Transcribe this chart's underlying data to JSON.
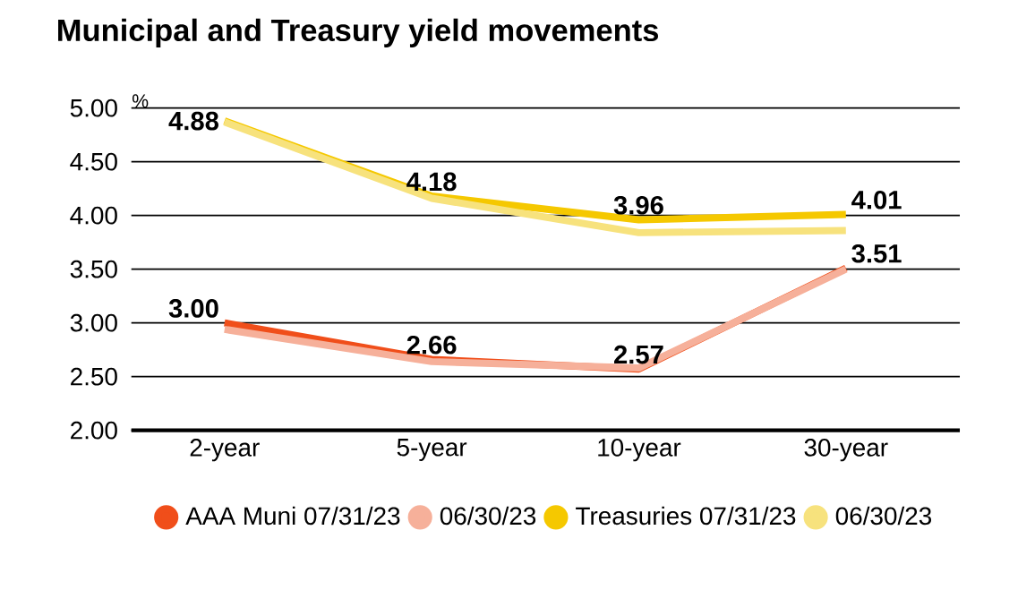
{
  "chart_data": {
    "type": "line",
    "title": "Municipal and Treasury yield movements",
    "ylabel": "%",
    "categories": [
      "2-year",
      "5-year",
      "10-year",
      "30-year"
    ],
    "series": [
      {
        "name": "AAA Muni 07/31/23",
        "color": "#f04e1a",
        "values": [
          3.0,
          2.66,
          2.57,
          3.51
        ],
        "value_labels": [
          "3.00",
          "2.66",
          "2.57",
          "3.51"
        ]
      },
      {
        "name": "06/30/23",
        "color": "#f6b09a",
        "values": [
          2.94,
          2.64,
          2.58,
          3.5
        ]
      },
      {
        "name": "Treasuries 07/31/23",
        "color": "#f5c800",
        "values": [
          4.88,
          4.18,
          3.96,
          4.01
        ],
        "value_labels": [
          "4.88",
          "4.18",
          "3.96",
          "4.01"
        ]
      },
      {
        "name": "06/30/23",
        "color": "#f7e27d",
        "values": [
          4.87,
          4.16,
          3.84,
          3.86
        ]
      }
    ],
    "ylim": [
      2,
      5
    ],
    "yticks": [
      {
        "value": 2,
        "label": "2.00"
      },
      {
        "value": 2.5,
        "label": "2.50"
      },
      {
        "value": 3,
        "label": "3.00"
      },
      {
        "value": 3.5,
        "label": "3.50"
      },
      {
        "value": 4,
        "label": "4.00"
      },
      {
        "value": 4.5,
        "label": "4.50"
      },
      {
        "value": 5,
        "label": "5.00"
      }
    ],
    "grid": "y",
    "legend": "bottom",
    "marker": "none",
    "line_style": "solid"
  }
}
